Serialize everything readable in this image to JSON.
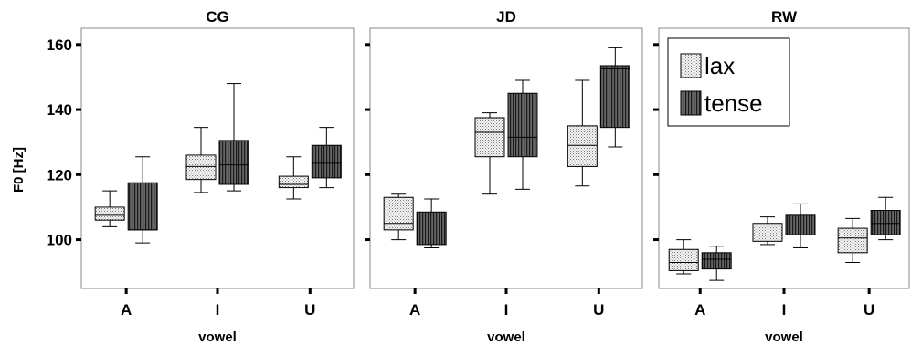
{
  "chart_data": {
    "type": "boxplot",
    "ylabel": "F0 [Hz]",
    "xlabel": "vowel",
    "ylim": [
      85,
      165
    ],
    "yticks": [
      100,
      120,
      140,
      160
    ],
    "categories": [
      "A",
      "I",
      "U"
    ],
    "legend": {
      "placement": "top-left of third panel",
      "entries": [
        {
          "name": "lax",
          "fill": "dotted-light"
        },
        {
          "name": "tense",
          "fill": "striped-dark"
        }
      ]
    },
    "panels": [
      {
        "title": "CG",
        "boxes": [
          {
            "category": "A",
            "series": "lax",
            "min": 104,
            "q1": 106,
            "median": 107.5,
            "q3": 110,
            "max": 115
          },
          {
            "category": "A",
            "series": "tense",
            "min": 99,
            "q1": 103,
            "median": 103,
            "q3": 117.5,
            "max": 125.5
          },
          {
            "category": "I",
            "series": "lax",
            "min": 114.5,
            "q1": 118.5,
            "median": 122.5,
            "q3": 126,
            "max": 134.5
          },
          {
            "category": "I",
            "series": "tense",
            "min": 115,
            "q1": 117,
            "median": 123,
            "q3": 130.5,
            "max": 148
          },
          {
            "category": "U",
            "series": "lax",
            "min": 112.5,
            "q1": 116,
            "median": 117,
            "q3": 119.5,
            "max": 125.5
          },
          {
            "category": "U",
            "series": "tense",
            "min": 116,
            "q1": 119,
            "median": 123.5,
            "q3": 129,
            "max": 134.5
          }
        ]
      },
      {
        "title": "JD",
        "boxes": [
          {
            "category": "A",
            "series": "lax",
            "min": 100,
            "q1": 103,
            "median": 105,
            "q3": 113,
            "max": 114
          },
          {
            "category": "A",
            "series": "tense",
            "min": 97.5,
            "q1": 98.5,
            "median": 104.5,
            "q3": 108.5,
            "max": 112.5
          },
          {
            "category": "I",
            "series": "lax",
            "min": 114,
            "q1": 125.5,
            "median": 133,
            "q3": 137.5,
            "max": 139
          },
          {
            "category": "I",
            "series": "tense",
            "min": 115.5,
            "q1": 125.5,
            "median": 131.5,
            "q3": 145,
            "max": 149
          },
          {
            "category": "U",
            "series": "lax",
            "min": 116.5,
            "q1": 122.5,
            "median": 129,
            "q3": 135,
            "max": 149
          },
          {
            "category": "U",
            "series": "tense",
            "min": 128.5,
            "q1": 134.5,
            "median": 152.5,
            "q3": 153.5,
            "max": 159
          }
        ]
      },
      {
        "title": "RW",
        "boxes": [
          {
            "category": "A",
            "series": "lax",
            "min": 89.5,
            "q1": 90.5,
            "median": 93,
            "q3": 97,
            "max": 100
          },
          {
            "category": "A",
            "series": "tense",
            "min": 87.5,
            "q1": 91,
            "median": 94,
            "q3": 96,
            "max": 98
          },
          {
            "category": "I",
            "series": "lax",
            "min": 98.5,
            "q1": 99.5,
            "median": 104.5,
            "q3": 105,
            "max": 107
          },
          {
            "category": "I",
            "series": "tense",
            "min": 97.5,
            "q1": 101.5,
            "median": 104.5,
            "q3": 107.5,
            "max": 111
          },
          {
            "category": "U",
            "series": "lax",
            "min": 93,
            "q1": 96,
            "median": 100.5,
            "q3": 103.5,
            "max": 106.5
          },
          {
            "category": "U",
            "series": "tense",
            "min": 100,
            "q1": 101.5,
            "median": 105,
            "q3": 109,
            "max": 113
          }
        ]
      }
    ]
  }
}
